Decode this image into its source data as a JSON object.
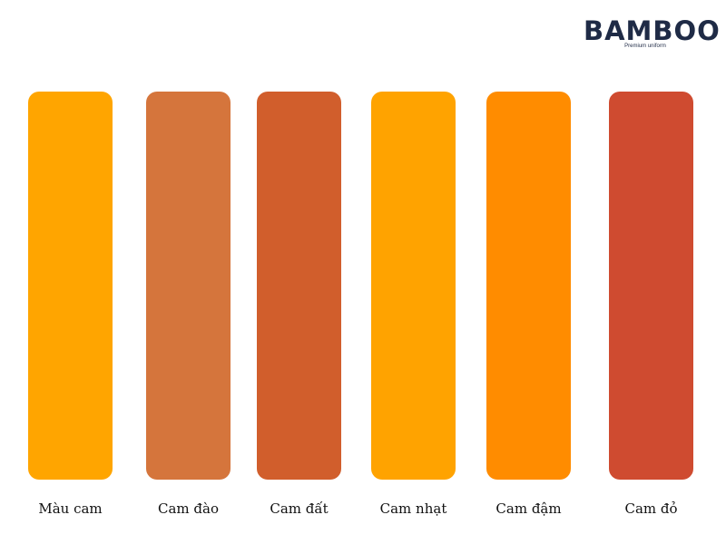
{
  "logo": {
    "name": "BAMBOO",
    "tagline": "Premium uniform"
  },
  "swatches": [
    {
      "label": "Màu cam",
      "color": "#FFA500"
    },
    {
      "label": "Cam đào",
      "color": "#D5753C"
    },
    {
      "label": "Cam đất",
      "color": "#D15E2C"
    },
    {
      "label": "Cam nhạt",
      "color": "#FFA300"
    },
    {
      "label": "Cam đậm",
      "color": "#FF8C00"
    },
    {
      "label": "Cam đỏ",
      "color": "#CF4B30"
    }
  ]
}
